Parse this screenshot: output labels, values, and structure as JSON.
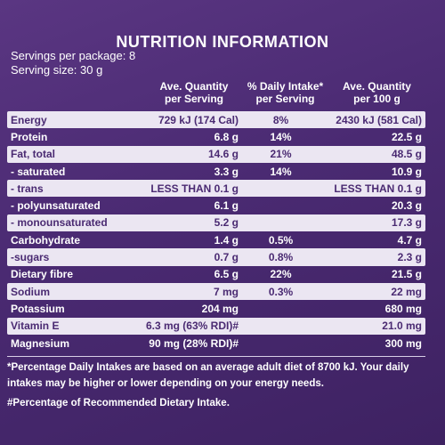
{
  "title": "NUTRITION INFORMATION",
  "servings": [
    "Servings per package: 8",
    "Serving size: 30 g"
  ],
  "table": {
    "headers": [
      [
        "Ave. Quantity",
        "per Serving"
      ],
      [
        "% Daily Intake*",
        "per Serving"
      ],
      [
        "Ave. Quantity",
        "per 100 g"
      ]
    ],
    "rows": [
      [
        "Energy",
        "729 kJ (174 Cal)",
        "8%",
        "2430 kJ (581 Cal)"
      ],
      [
        "Protein",
        "6.8 g",
        "14%",
        "22.5 g"
      ],
      [
        "Fat, total",
        "14.6 g",
        "21%",
        "48.5 g"
      ],
      [
        "- saturated",
        "3.3 g",
        "14%",
        "10.9 g"
      ],
      [
        "- trans",
        "LESS THAN 0.1 g",
        null,
        "LESS THAN 0.1 g"
      ],
      [
        "- polyunsaturated",
        "6.1 g",
        null,
        "20.3 g"
      ],
      [
        "- monounsaturated",
        "5.2 g",
        null,
        "17.3 g"
      ],
      [
        "Carbohydrate",
        "1.4 g",
        "0.5%",
        "4.7 g"
      ],
      [
        "-sugars",
        "0.7 g",
        "0.8%",
        "2.3 g"
      ],
      [
        "Dietary fibre",
        "6.5 g",
        "22%",
        "21.5 g"
      ],
      [
        "Sodium",
        "7 mg",
        "0.3%",
        "22 mg"
      ],
      [
        "Potassium",
        "204 mg",
        null,
        "680 mg"
      ],
      [
        "Vitamin E",
        "6.3 mg (63% RDI)#",
        null,
        "21.0 mg"
      ],
      [
        "Magnesium",
        "90 mg (28% RDI)#",
        null,
        "300 mg"
      ]
    ]
  },
  "footnotes": [
    "*Percentage Daily Intakes are based on an average adult diet of 8700 kJ. Your daily intakes may be higher or lower depending on your energy needs.",
    "#Percentage of Recommended Dietary Intake."
  ]
}
